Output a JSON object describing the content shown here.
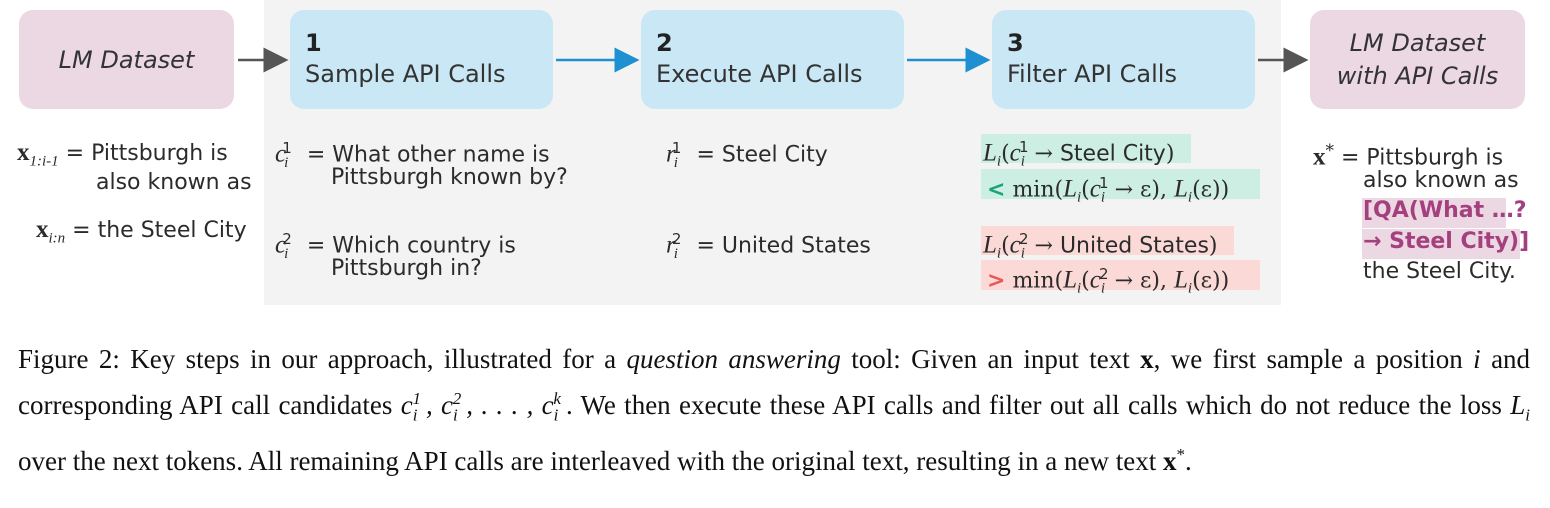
{
  "boxes": {
    "lm_dataset": "LM Dataset",
    "output_line1": "LM Dataset",
    "output_line2": "with API Calls"
  },
  "steps": [
    {
      "num": "1",
      "label": "Sample API Calls"
    },
    {
      "num": "2",
      "label": "Execute API Calls"
    },
    {
      "num": "3",
      "label": "Filter API Calls"
    }
  ],
  "input": {
    "x1_line1": "= Pittsburgh is",
    "x1_line2": "also known as",
    "x2": "= the Steel City"
  },
  "sample": {
    "c1_line1": "= What other name is",
    "c1_line2": "Pittsburgh known by?",
    "c2_line1": "= Which country is",
    "c2_line2": "Pittsburgh in?"
  },
  "execute": {
    "r1": "= Steel City",
    "r2": "= United States"
  },
  "filter": {
    "f1_result": "Steel City",
    "f2_result": "United States",
    "lt": "<",
    "gt": ">"
  },
  "output": {
    "line1": "= Pittsburgh is",
    "line2": "also known as",
    "qa1": "[QA(What …?",
    "qa2": "→ Steel City)]",
    "line3": "the Steel City."
  },
  "caption": {
    "figure_label": "Figure 2:",
    "part1": "Key steps in our approach, illustrated for a",
    "part1_italic": "question answering",
    "part2": "tool: Given an input text",
    "part3": ", we first sample a position",
    "part4": "and corresponding API call candidates",
    "part5": ". We then execute these API calls and filter out all calls which do not reduce the loss",
    "part6": "over the next tokens. All remaining API calls are interleaved with the original text, resulting in a new text",
    "part7": "."
  },
  "colors": {
    "pink_box": "#ecd8e3",
    "blue_box": "#c9e7f4",
    "arrow_blue": "#1e8fd0",
    "arrow_gray": "#555555",
    "green_highlight": "#cdeee3",
    "red_highlight": "#fbd9d6",
    "qa_text": "#a5407f"
  }
}
